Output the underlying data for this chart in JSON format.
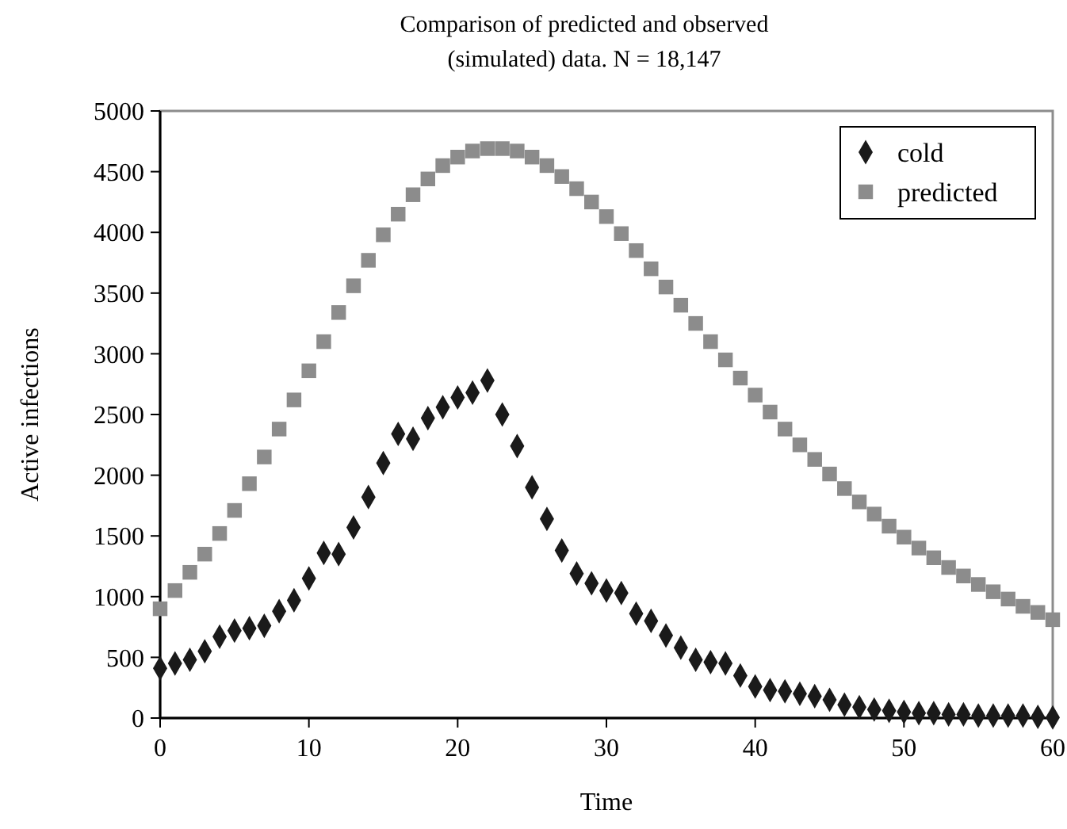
{
  "chart_data": {
    "type": "scatter",
    "title": "Comparison of predicted and observed\n(simulated) data. N = 18,147",
    "xlabel": "Time",
    "ylabel": "Active infections",
    "x": [
      0,
      1,
      2,
      3,
      4,
      5,
      6,
      7,
      8,
      9,
      10,
      11,
      12,
      13,
      14,
      15,
      16,
      17,
      18,
      19,
      20,
      21,
      22,
      23,
      24,
      25,
      26,
      27,
      28,
      29,
      30,
      31,
      32,
      33,
      34,
      35,
      36,
      37,
      38,
      39,
      40,
      41,
      42,
      43,
      44,
      45,
      46,
      47,
      48,
      49,
      50,
      51,
      52,
      53,
      54,
      55,
      56,
      57,
      58,
      59,
      60
    ],
    "series": [
      {
        "name": "cold",
        "color": "#1a1a1a",
        "marker": "diamond",
        "values": [
          410,
          450,
          480,
          550,
          670,
          720,
          740,
          760,
          880,
          970,
          1150,
          1360,
          1350,
          1570,
          1820,
          2100,
          2340,
          2300,
          2470,
          2560,
          2640,
          2680,
          2780,
          2500,
          2240,
          1900,
          1640,
          1380,
          1190,
          1110,
          1050,
          1030,
          860,
          800,
          680,
          580,
          480,
          460,
          450,
          350,
          260,
          230,
          220,
          200,
          180,
          150,
          110,
          90,
          70,
          60,
          50,
          40,
          40,
          30,
          30,
          20,
          20,
          20,
          20,
          10,
          5
        ]
      },
      {
        "name": "predicted",
        "color": "#8c8c8c",
        "marker": "square",
        "values": [
          900,
          1050,
          1200,
          1350,
          1520,
          1710,
          1930,
          2150,
          2380,
          2620,
          2860,
          3100,
          3340,
          3560,
          3770,
          3980,
          4150,
          4310,
          4440,
          4550,
          4620,
          4670,
          4690,
          4690,
          4670,
          4620,
          4550,
          4460,
          4360,
          4250,
          4130,
          3990,
          3850,
          3700,
          3550,
          3400,
          3250,
          3100,
          2950,
          2800,
          2660,
          2520,
          2380,
          2250,
          2130,
          2010,
          1890,
          1780,
          1680,
          1580,
          1490,
          1400,
          1320,
          1240,
          1170,
          1100,
          1040,
          980,
          920,
          870,
          810
        ]
      }
    ],
    "xlim": [
      0,
      60
    ],
    "xticks": [
      0,
      10,
      20,
      30,
      40,
      50,
      60
    ],
    "ylim": [
      0,
      5000
    ],
    "yticks": [
      0,
      500,
      1000,
      1500,
      2000,
      2500,
      3000,
      3500,
      4000,
      4500,
      5000
    ],
    "grid": false,
    "legend": "top right"
  }
}
